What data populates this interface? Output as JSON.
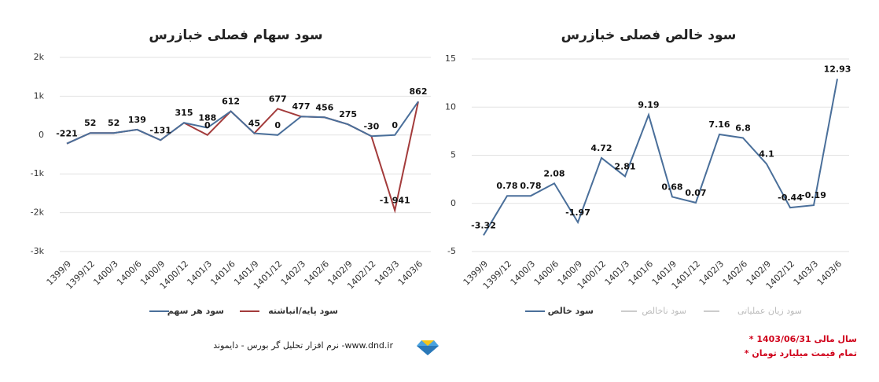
{
  "chart_data": [
    {
      "type": "line",
      "title": "سود سهام فصلی خبازرس",
      "categories": [
        "1399/9",
        "1399/12",
        "1400/3",
        "1400/6",
        "1400/9",
        "1400/12",
        "1401/3",
        "1401/6",
        "1401/9",
        "1401/12",
        "1402/3",
        "1402/6",
        "1402/9",
        "1402/12",
        "1403/3",
        "1403/6"
      ],
      "series": [
        {
          "name": "سود هر سهم",
          "color": "#4a6f9a",
          "values": [
            -221,
            52,
            52,
            139,
            -131,
            315,
            188,
            612,
            45,
            0,
            477,
            456,
            275,
            -30,
            0,
            862
          ]
        },
        {
          "name": "سود پایه/انباشته",
          "color": "#a33b3b",
          "values": [
            -221,
            52,
            52,
            139,
            -131,
            315,
            0,
            612,
            45,
            677,
            477,
            456,
            275,
            -30,
            -1941,
            862
          ],
          "value_labels": [
            "-221",
            "52",
            "52",
            "139",
            "-131",
            "315",
            "0",
            "612",
            "45",
            "677",
            "477",
            "456",
            "275",
            "-30",
            "-1 941",
            "862"
          ]
        }
      ],
      "ylim": [
        -3000,
        2000
      ],
      "yticks": [
        {
          "value": -3000,
          "label": "-3k"
        },
        {
          "value": -2000,
          "label": "-2k"
        },
        {
          "value": -1000,
          "label": "-1k"
        },
        0,
        {
          "value": 1000,
          "label": "1k"
        },
        {
          "value": 2000,
          "label": "2k"
        }
      ],
      "grid": true
    },
    {
      "type": "line",
      "title": "سود خالص فصلی خبازرس",
      "categories": [
        "1399/9",
        "1399/12",
        "1400/3",
        "1400/6",
        "1400/9",
        "1400/12",
        "1401/3",
        "1401/6",
        "1401/9",
        "1401/12",
        "1402/3",
        "1402/6",
        "1402/9",
        "1402/12",
        "1403/3",
        "1403/6"
      ],
      "series": [
        {
          "name": "سود خالص",
          "color": "#4a6f9a",
          "values": [
            -3.32,
            0.78,
            0.78,
            2.08,
            -1.97,
            4.72,
            2.81,
            9.19,
            0.68,
            0.07,
            7.16,
            6.8,
            4.1,
            -0.44,
            -0.19,
            12.93
          ]
        }
      ],
      "inactive_legend": [
        {
          "name": "سود ناخالص",
          "color": "#cccccc"
        },
        {
          "name": "سود زیان عملیاتی",
          "color": "#cccccc"
        }
      ],
      "ylim": [
        -5,
        15
      ],
      "yticks": [
        -5,
        0,
        5,
        10,
        15
      ],
      "grid": true
    }
  ],
  "footer": {
    "notes": [
      "* سال مالی 1403/06/31",
      "* تمام قیمت میلیارد تومان"
    ],
    "credit": "نرم افزار تحلیل گر بورس - دایموند -www.dnd.ir"
  }
}
